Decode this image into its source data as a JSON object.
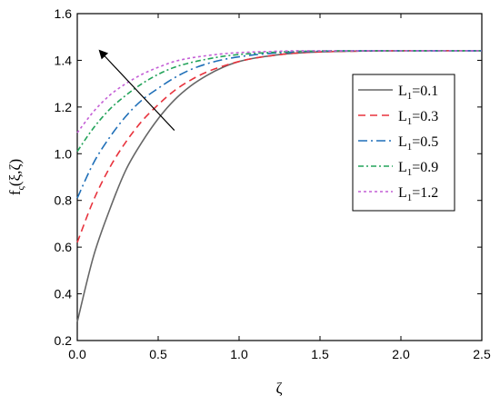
{
  "chart_data": {
    "type": "line",
    "xlabel": "ζ",
    "ylabel_main": "f",
    "ylabel_sub": "ς",
    "ylabel_args": "(ξ,ζ)",
    "xlim": [
      0,
      2.5
    ],
    "ylim": [
      0.2,
      1.6
    ],
    "xticks": [
      "0.0",
      "0.5",
      "1.0",
      "1.5",
      "2.0",
      "2.5"
    ],
    "yticks": [
      "0.2",
      "0.4",
      "0.6",
      "0.8",
      "1.0",
      "1.2",
      "1.4",
      "1.6"
    ],
    "grid": false,
    "legend_position": "right",
    "annotation": "arrow indicating increasing L1",
    "series": [
      {
        "name": "L₁=0.1",
        "label_main": "L",
        "label_sub": "1",
        "label_rest": "=0.1",
        "color": "#666666",
        "dash": "solid",
        "x": [
          0,
          0.1,
          0.2,
          0.3,
          0.4,
          0.5,
          0.6,
          0.7,
          0.8,
          0.9,
          1.0,
          1.1,
          1.2,
          1.3,
          1.4,
          1.5,
          1.6,
          1.8,
          2.0,
          2.5
        ],
        "y": [
          0.28,
          0.56,
          0.76,
          0.93,
          1.05,
          1.15,
          1.23,
          1.29,
          1.335,
          1.37,
          1.395,
          1.41,
          1.42,
          1.428,
          1.433,
          1.436,
          1.438,
          1.44,
          1.441,
          1.441
        ]
      },
      {
        "name": "L₁=0.3",
        "label_main": "L",
        "label_sub": "1",
        "label_rest": "=0.3",
        "color": "#e8333d",
        "dash": "8,5",
        "x": [
          0,
          0.1,
          0.2,
          0.3,
          0.4,
          0.5,
          0.6,
          0.7,
          0.8,
          0.9,
          1.0,
          1.1,
          1.2,
          1.3,
          1.4,
          1.5,
          1.6,
          1.8,
          2.0,
          2.5
        ],
        "y": [
          0.62,
          0.8,
          0.94,
          1.05,
          1.14,
          1.21,
          1.27,
          1.315,
          1.35,
          1.375,
          1.395,
          1.41,
          1.42,
          1.428,
          1.433,
          1.436,
          1.438,
          1.44,
          1.441,
          1.441
        ]
      },
      {
        "name": "L₁=0.5",
        "label_main": "L",
        "label_sub": "1",
        "label_rest": "=0.5",
        "color": "#1f6fb8",
        "dash": "10,4,2,4",
        "x": [
          0,
          0.1,
          0.2,
          0.3,
          0.4,
          0.5,
          0.6,
          0.7,
          0.8,
          0.9,
          1.0,
          1.1,
          1.2,
          1.3,
          1.4,
          1.5,
          1.6,
          1.8,
          2.0,
          2.5
        ],
        "y": [
          0.81,
          0.96,
          1.07,
          1.16,
          1.23,
          1.28,
          1.325,
          1.36,
          1.385,
          1.403,
          1.415,
          1.424,
          1.43,
          1.434,
          1.437,
          1.439,
          1.44,
          1.441,
          1.441,
          1.441
        ]
      },
      {
        "name": "L₁=0.9",
        "label_main": "L",
        "label_sub": "1",
        "label_rest": "=0.9",
        "color": "#22a35a",
        "dash": "6,3,2,3",
        "x": [
          0,
          0.1,
          0.2,
          0.3,
          0.4,
          0.5,
          0.6,
          0.7,
          0.8,
          0.9,
          1.0,
          1.1,
          1.2,
          1.3,
          1.4,
          1.5,
          1.6,
          1.8,
          2.0,
          2.5
        ],
        "y": [
          1.01,
          1.11,
          1.19,
          1.25,
          1.3,
          1.34,
          1.37,
          1.39,
          1.405,
          1.417,
          1.425,
          1.43,
          1.434,
          1.437,
          1.439,
          1.44,
          1.441,
          1.441,
          1.441,
          1.441
        ]
      },
      {
        "name": "L₁=1.2",
        "label_main": "L",
        "label_sub": "1",
        "label_rest": "=1.2",
        "color": "#c45fd6",
        "dash": "3,3",
        "x": [
          0,
          0.1,
          0.2,
          0.3,
          0.4,
          0.5,
          0.6,
          0.7,
          0.8,
          0.9,
          1.0,
          1.1,
          1.2,
          1.3,
          1.4,
          1.5,
          1.6,
          1.8,
          2.0,
          2.5
        ],
        "y": [
          1.09,
          1.18,
          1.25,
          1.3,
          1.34,
          1.37,
          1.395,
          1.41,
          1.42,
          1.428,
          1.433,
          1.436,
          1.438,
          1.44,
          1.441,
          1.441,
          1.441,
          1.441,
          1.441,
          1.441
        ]
      }
    ]
  }
}
